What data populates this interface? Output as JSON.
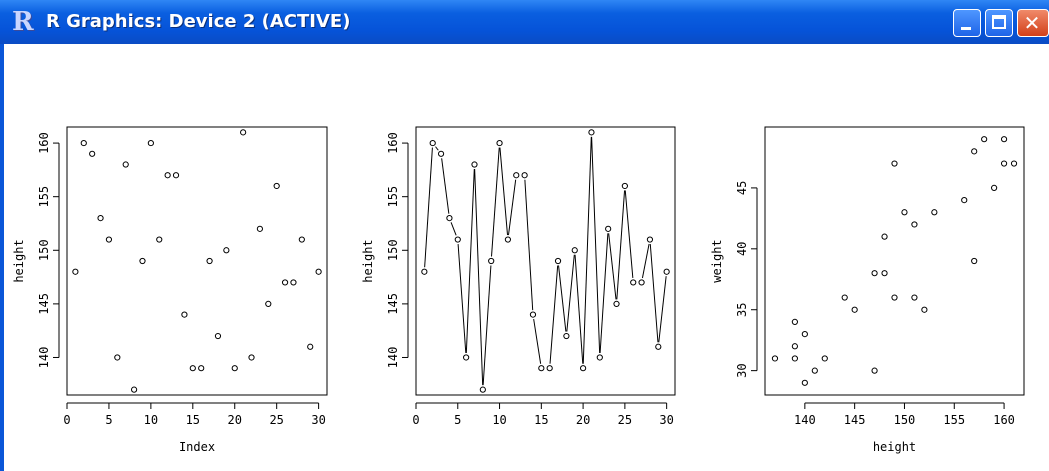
{
  "window": {
    "title": "R Graphics: Device 2 (ACTIVE)",
    "icon": "r-logo-icon",
    "controls": [
      "minimize-icon",
      "maximize-icon",
      "close-icon"
    ],
    "close_glyph": "✕",
    "titlebar_color": "#0653d8"
  },
  "chart_data": [
    {
      "type": "scatter",
      "title": "",
      "xlabel": "Index",
      "ylabel": "height",
      "xlim": [
        0,
        31
      ],
      "ylim": [
        136.5,
        161.5
      ],
      "xticks": [
        0,
        5,
        10,
        15,
        20,
        25,
        30
      ],
      "yticks": [
        140,
        145,
        150,
        155,
        160
      ],
      "x": [
        1,
        2,
        3,
        4,
        5,
        6,
        7,
        8,
        9,
        10,
        11,
        12,
        13,
        14,
        15,
        16,
        17,
        18,
        19,
        20,
        21,
        22,
        23,
        24,
        25,
        26,
        27,
        28,
        29,
        30
      ],
      "y": [
        148,
        160,
        159,
        153,
        151,
        140,
        158,
        137,
        149,
        160,
        151,
        157,
        157,
        144,
        139,
        139,
        149,
        142,
        150,
        139,
        161,
        140,
        152,
        145,
        156,
        147,
        147,
        151,
        141,
        148
      ],
      "marker": "open-circle",
      "line": false
    },
    {
      "type": "line",
      "title": "",
      "xlabel": "",
      "ylabel": "height",
      "xlim": [
        0,
        31
      ],
      "ylim": [
        136.5,
        161.5
      ],
      "xticks": [
        0,
        5,
        10,
        15,
        20,
        25,
        30
      ],
      "yticks": [
        140,
        145,
        150,
        155,
        160
      ],
      "x": [
        1,
        2,
        3,
        4,
        5,
        6,
        7,
        8,
        9,
        10,
        11,
        12,
        13,
        14,
        15,
        16,
        17,
        18,
        19,
        20,
        21,
        22,
        23,
        24,
        25,
        26,
        27,
        28,
        29,
        30
      ],
      "y": [
        148,
        160,
        159,
        153,
        151,
        140,
        158,
        137,
        149,
        160,
        151,
        157,
        157,
        144,
        139,
        139,
        149,
        142,
        150,
        139,
        161,
        140,
        152,
        145,
        156,
        147,
        147,
        151,
        141,
        148
      ],
      "marker": "open-circle",
      "line": true
    },
    {
      "type": "scatter",
      "title": "",
      "xlabel": "height",
      "ylabel": "weight",
      "xlim": [
        136,
        162
      ],
      "ylim": [
        28,
        50
      ],
      "xticks": [
        140,
        145,
        150,
        155,
        160
      ],
      "yticks": [
        30,
        35,
        40,
        45
      ],
      "x": [
        137,
        139,
        139,
        139,
        140,
        140,
        141,
        142,
        144,
        145,
        147,
        147,
        148,
        148,
        149,
        149,
        150,
        151,
        151,
        152,
        153,
        156,
        157,
        157,
        158,
        159,
        160,
        160,
        161
      ],
      "y": [
        31,
        34,
        32,
        31,
        33,
        29,
        30,
        31,
        36,
        35,
        38,
        30,
        41,
        38,
        47,
        36,
        43,
        42,
        36,
        35,
        43,
        44,
        48,
        39,
        49,
        45,
        49,
        47,
        47
      ],
      "marker": "open-circle",
      "line": false
    }
  ]
}
